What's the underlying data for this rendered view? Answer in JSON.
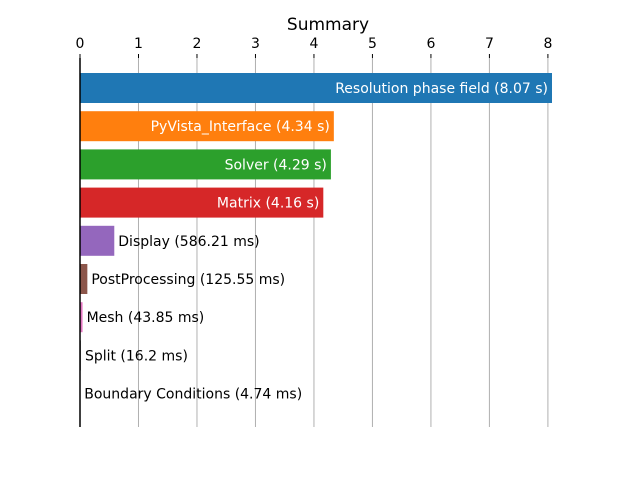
{
  "chart_data": {
    "type": "barh",
    "title": "Summary",
    "values": [
      8.07,
      4.34,
      4.29,
      4.16,
      0.58621,
      0.12555,
      0.04385,
      0.0162,
      0.00474
    ],
    "value_labels": [
      "Resolution phase field (8.07 s)",
      "PyVista_Interface (4.34 s)",
      "Solver (4.29 s)",
      "Matrix (4.16 s)",
      "Display (586.21 ms)",
      "PostProcessing (125.55 ms)",
      "Mesh (43.85 ms)",
      "Split (16.2 ms)",
      "Boundary Conditions (4.74 ms)"
    ],
    "colors": [
      "#1f77b4",
      "#ff7f0e",
      "#2ca02c",
      "#d62728",
      "#9467bd",
      "#8c564b",
      "#e377c2",
      "#7f7f7f",
      "#bcbd22"
    ],
    "xlim": [
      0,
      8.07
    ],
    "xticks": [
      0,
      1,
      2,
      3,
      4,
      5,
      6,
      7,
      8
    ],
    "grid": true
  }
}
